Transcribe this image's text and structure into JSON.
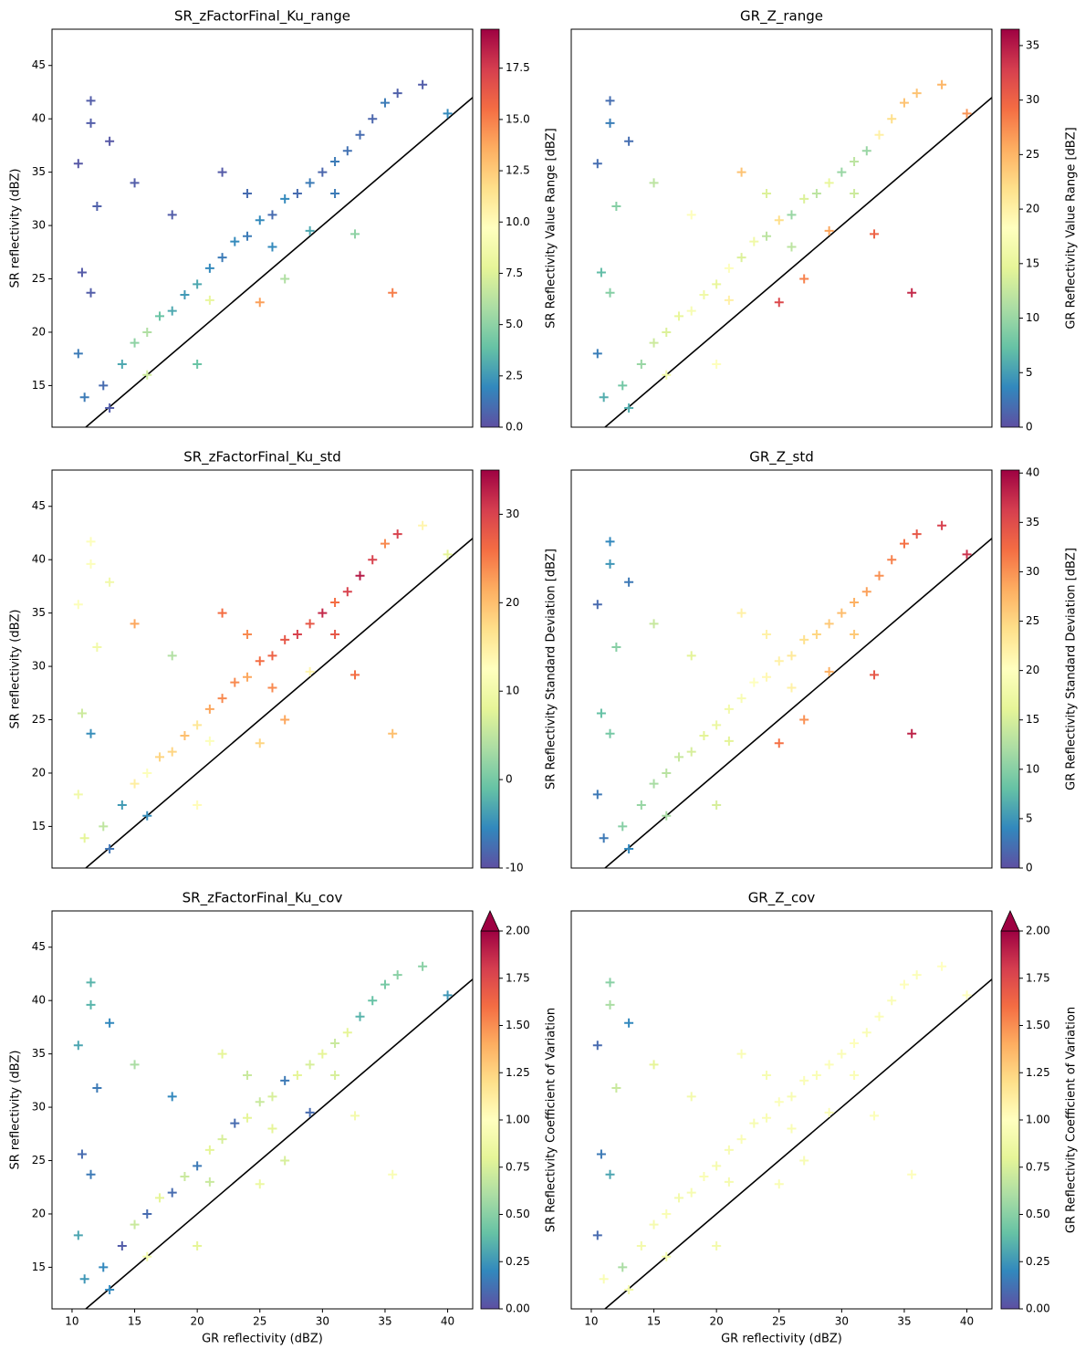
{
  "chart_data": [
    {
      "type": "scatter",
      "title": "SR_zFactorFinal_Ku_range",
      "ylabel": "SR reflectivity (dBZ)",
      "colorbar_label": "SR Reflectivity Value Range [dBZ]",
      "colormap": "Spectral_r",
      "marker": "+",
      "identity_line": true,
      "xlim": [
        8.4,
        42
      ],
      "ylim": [
        11.1,
        48.4
      ],
      "yticks": [
        15,
        20,
        25,
        30,
        35,
        40,
        45
      ],
      "clim": [
        0,
        19.4
      ],
      "cticks": [
        {
          "value": 0,
          "label": "0.0"
        },
        {
          "value": 2.5,
          "label": "2.5"
        },
        {
          "value": 5,
          "label": "5.0"
        },
        {
          "value": 7.5,
          "label": "7.5"
        },
        {
          "value": 10,
          "label": "10.0"
        },
        {
          "value": 12.5,
          "label": "12.5"
        },
        {
          "value": 15,
          "label": "15.0"
        },
        {
          "value": 17.5,
          "label": "17.5"
        }
      ],
      "x": [
        10.5,
        11.5,
        11.5,
        13,
        10.8,
        11.5,
        12,
        10.5,
        11,
        13,
        12.5,
        14,
        15,
        16,
        17,
        18,
        19,
        20,
        21,
        22,
        23,
        24,
        25,
        26,
        27,
        28,
        29,
        30,
        31,
        32,
        33,
        34,
        35,
        36,
        38,
        40,
        35.6,
        32.6,
        20,
        25,
        15,
        18,
        22,
        27,
        24,
        29,
        16,
        21,
        26,
        31
      ],
      "values": [
        35.8,
        41.7,
        39.6,
        37.9,
        25.6,
        23.7,
        31.8,
        18,
        13.9,
        12.9,
        15,
        17,
        19,
        20,
        21.5,
        22,
        23.5,
        24.5,
        26,
        27,
        28.5,
        29,
        30.5,
        31,
        32.5,
        33,
        34,
        35,
        36,
        37,
        38.5,
        40,
        41.5,
        42.4,
        43.2,
        40.5,
        23.7,
        29.2,
        17,
        22.8,
        34,
        31,
        35,
        25,
        33,
        29.5,
        16,
        23,
        28,
        33
      ],
      "color_values": [
        0.3,
        0.5,
        0.5,
        0.3,
        0.4,
        0.5,
        0.6,
        1.5,
        1.5,
        0.5,
        1,
        3,
        5,
        6,
        4,
        3,
        2.5,
        3,
        2,
        1.5,
        2,
        1.5,
        2,
        1,
        2,
        1,
        1.5,
        0.8,
        1.5,
        1.2,
        1,
        0.8,
        1.5,
        0.6,
        0.5,
        2,
        15,
        5,
        4,
        14,
        0.5,
        0.5,
        0.4,
        6,
        1,
        3,
        7,
        8,
        2,
        1.5
      ]
    },
    {
      "type": "scatter",
      "title": "GR_Z_range",
      "colorbar_label": "GR Reflectivity Value Range [dBZ]",
      "colormap": "Spectral_r",
      "marker": "+",
      "identity_line": true,
      "xlim": [
        8.4,
        42
      ],
      "ylim": [
        11.1,
        48.4
      ],
      "clim": [
        0,
        36.5
      ],
      "cticks": [
        0,
        5,
        10,
        15,
        20,
        25,
        30,
        35
      ],
      "x": [
        10.5,
        11.5,
        11.5,
        13,
        10.8,
        11.5,
        12,
        10.5,
        11,
        13,
        12.5,
        14,
        15,
        16,
        17,
        18,
        19,
        20,
        21,
        22,
        23,
        24,
        25,
        26,
        27,
        28,
        29,
        30,
        31,
        32,
        33,
        34,
        35,
        36,
        38,
        40,
        35.6,
        32.6,
        20,
        25,
        15,
        18,
        22,
        27,
        24,
        29,
        16,
        21,
        26,
        31
      ],
      "values": [
        35.8,
        41.7,
        39.6,
        37.9,
        25.6,
        23.7,
        31.8,
        18,
        13.9,
        12.9,
        15,
        17,
        19,
        20,
        21.5,
        22,
        23.5,
        24.5,
        26,
        27,
        28.5,
        29,
        30.5,
        31,
        32.5,
        33,
        34,
        35,
        36,
        37,
        38.5,
        40,
        41.5,
        42.4,
        43.2,
        40.5,
        23.7,
        29.2,
        17,
        22.8,
        34,
        31,
        35,
        25,
        33,
        29.5,
        16,
        23,
        28,
        33
      ],
      "color_values": [
        2,
        2,
        3,
        2,
        7,
        9,
        9,
        3,
        6,
        6,
        8,
        10,
        13,
        14,
        15,
        17,
        16,
        15,
        18,
        14,
        16,
        12,
        22,
        10,
        14,
        12,
        15,
        10,
        12,
        10,
        20,
        22,
        24,
        24,
        25,
        27,
        34,
        30,
        18,
        32,
        12,
        18,
        24,
        28,
        14,
        26,
        16,
        20,
        12,
        13
      ]
    },
    {
      "type": "scatter",
      "title": "SR_zFactorFinal_Ku_std",
      "ylabel": "SR reflectivity (dBZ)",
      "colorbar_label": "SR Reflectivity Standard Deviation [dBZ]",
      "colormap": "Spectral_r",
      "marker": "+",
      "identity_line": true,
      "xlim": [
        8.4,
        42
      ],
      "ylim": [
        11.1,
        48.4
      ],
      "yticks": [
        15,
        20,
        25,
        30,
        35,
        40,
        45
      ],
      "clim": [
        -10,
        35
      ],
      "cticks": [
        -10,
        0,
        10,
        20,
        30
      ],
      "x": [
        10.5,
        11.5,
        11.5,
        13,
        10.8,
        11.5,
        12,
        10.5,
        11,
        13,
        12.5,
        14,
        15,
        16,
        17,
        18,
        19,
        20,
        21,
        22,
        23,
        24,
        25,
        26,
        27,
        28,
        29,
        30,
        31,
        32,
        33,
        34,
        35,
        36,
        38,
        40,
        35.6,
        32.6,
        20,
        25,
        15,
        18,
        22,
        27,
        24,
        29,
        16,
        21,
        26,
        31
      ],
      "values": [
        35.8,
        41.7,
        39.6,
        37.9,
        25.6,
        23.7,
        31.8,
        18,
        13.9,
        12.9,
        15,
        17,
        19,
        20,
        21.5,
        22,
        23.5,
        24.5,
        26,
        27,
        28.5,
        29,
        30.5,
        31,
        32.5,
        33,
        34,
        35,
        36,
        37,
        38.5,
        40,
        41.5,
        42.4,
        43.2,
        40.5,
        23.7,
        29.2,
        17,
        22.8,
        34,
        31,
        35,
        25,
        33,
        29.5,
        16,
        23,
        28,
        33
      ],
      "color_values": [
        12,
        12,
        12,
        10,
        6,
        -5,
        10,
        10,
        8,
        -7,
        5,
        -4,
        15,
        12,
        18,
        18,
        20,
        16,
        22,
        24,
        24,
        22,
        26,
        27,
        28,
        30,
        28,
        32,
        26,
        30,
        33,
        30,
        24,
        30,
        14,
        8,
        20,
        26,
        13,
        18,
        22,
        4,
        26,
        22,
        24,
        14,
        -5,
        12,
        24,
        28
      ]
    },
    {
      "type": "scatter",
      "title": "GR_Z_std",
      "colorbar_label": "GR Reflectivity Standard Deviation [dBZ]",
      "colormap": "Spectral_r",
      "marker": "+",
      "identity_line": true,
      "xlim": [
        8.4,
        42
      ],
      "ylim": [
        11.1,
        48.4
      ],
      "clim": [
        0,
        40.3
      ],
      "cticks": [
        0,
        5,
        10,
        15,
        20,
        25,
        30,
        35,
        40
      ],
      "x": [
        10.5,
        11.5,
        11.5,
        13,
        10.8,
        11.5,
        12,
        10.5,
        11,
        13,
        12.5,
        14,
        15,
        16,
        17,
        18,
        19,
        20,
        21,
        22,
        23,
        24,
        25,
        26,
        27,
        28,
        29,
        30,
        31,
        32,
        33,
        34,
        35,
        36,
        38,
        40,
        35.6,
        32.6,
        20,
        25,
        15,
        18,
        22,
        27,
        24,
        29,
        16,
        21,
        26,
        31
      ],
      "values": [
        35.8,
        41.7,
        39.6,
        37.9,
        25.6,
        23.7,
        31.8,
        18,
        13.9,
        12.9,
        15,
        17,
        19,
        20,
        21.5,
        22,
        23.5,
        24.5,
        26,
        27,
        28.5,
        29,
        30.5,
        31,
        32.5,
        33,
        34,
        35,
        36,
        37,
        38.5,
        40,
        41.5,
        42.4,
        43.2,
        40.5,
        23.7,
        29.2,
        17,
        22.8,
        34,
        31,
        35,
        25,
        33,
        29.5,
        16,
        23,
        28,
        33
      ],
      "color_values": [
        2,
        4,
        5,
        3,
        8,
        9,
        10,
        3,
        3,
        4,
        10,
        11,
        12,
        13,
        14,
        15,
        16,
        17,
        18,
        19,
        20,
        21,
        22,
        23,
        24,
        25,
        26,
        27,
        28,
        29,
        30,
        31,
        32,
        34,
        36,
        37,
        38,
        34,
        15,
        32,
        14,
        16,
        22,
        30,
        22,
        28,
        12,
        16,
        22,
        26
      ]
    },
    {
      "type": "scatter",
      "title": "SR_zFactorFinal_Ku_cov",
      "xlabel": "GR reflectivity (dBZ)",
      "ylabel": "SR reflectivity (dBZ)",
      "colorbar_label": "SR Reflectivity Coefficient of Variation",
      "colormap": "Spectral_r",
      "colorbar_extend": "max",
      "marker": "+",
      "identity_line": true,
      "xlim": [
        8.4,
        42
      ],
      "ylim": [
        11.1,
        48.4
      ],
      "xticks": [
        10,
        15,
        20,
        25,
        30,
        35,
        40
      ],
      "yticks": [
        15,
        20,
        25,
        30,
        35,
        40,
        45
      ],
      "clim": [
        0,
        2
      ],
      "cticks": [
        {
          "value": 0,
          "label": "0.00"
        },
        {
          "value": 0.25,
          "label": "0.25"
        },
        {
          "value": 0.5,
          "label": "0.50"
        },
        {
          "value": 0.75,
          "label": "0.75"
        },
        {
          "value": 1,
          "label": "1.00"
        },
        {
          "value": 1.25,
          "label": "1.25"
        },
        {
          "value": 1.5,
          "label": "1.50"
        },
        {
          "value": 1.75,
          "label": "1.75"
        },
        {
          "value": 2,
          "label": "2.00"
        }
      ],
      "x": [
        10.5,
        11.5,
        11.5,
        13,
        10.8,
        11.5,
        12,
        10.5,
        11,
        13,
        12.5,
        14,
        15,
        16,
        17,
        18,
        19,
        20,
        21,
        22,
        23,
        24,
        25,
        26,
        27,
        28,
        29,
        30,
        31,
        32,
        33,
        34,
        35,
        36,
        38,
        40,
        35.6,
        32.6,
        20,
        25,
        15,
        18,
        22,
        27,
        24,
        29,
        16,
        21,
        26,
        31
      ],
      "values": [
        35.8,
        41.7,
        39.6,
        37.9,
        25.6,
        23.7,
        31.8,
        18,
        13.9,
        12.9,
        15,
        17,
        19,
        20,
        21.5,
        22,
        23.5,
        24.5,
        26,
        27,
        28.5,
        29,
        30.5,
        31,
        32.5,
        33,
        34,
        35,
        36,
        37,
        38.5,
        40,
        41.5,
        42.4,
        43.2,
        40.5,
        23.7,
        29.2,
        17,
        22.8,
        34,
        31,
        35,
        25,
        33,
        29.5,
        16,
        23,
        28,
        33
      ],
      "color_values": [
        0.3,
        0.35,
        0.35,
        0.2,
        0.1,
        0.15,
        0.15,
        0.3,
        0.25,
        0.2,
        0.2,
        0.05,
        0.7,
        0.1,
        0.8,
        0.1,
        0.7,
        0.15,
        0.8,
        0.75,
        0.1,
        0.8,
        0.7,
        0.75,
        0.15,
        0.8,
        0.75,
        0.8,
        0.7,
        0.8,
        0.35,
        0.4,
        0.45,
        0.5,
        0.5,
        0.25,
        0.95,
        0.9,
        0.8,
        0.85,
        0.6,
        0.2,
        0.8,
        0.75,
        0.7,
        0.1,
        0.9,
        0.7,
        0.8,
        0.75
      ]
    },
    {
      "type": "scatter",
      "title": "GR_Z_cov",
      "xlabel": "GR reflectivity (dBZ)",
      "colorbar_label": "GR Reflectivity Coefficient of Variation",
      "colormap": "Spectral_r",
      "colorbar_extend": "max",
      "marker": "+",
      "identity_line": true,
      "xlim": [
        8.4,
        42
      ],
      "ylim": [
        11.1,
        48.4
      ],
      "xticks": [
        10,
        15,
        20,
        25,
        30,
        35,
        40
      ],
      "clim": [
        0,
        2
      ],
      "cticks": [
        {
          "value": 0,
          "label": "0.00"
        },
        {
          "value": 0.25,
          "label": "0.25"
        },
        {
          "value": 0.5,
          "label": "0.50"
        },
        {
          "value": 0.75,
          "label": "0.75"
        },
        {
          "value": 1,
          "label": "1.00"
        },
        {
          "value": 1.25,
          "label": "1.25"
        },
        {
          "value": 1.5,
          "label": "1.50"
        },
        {
          "value": 1.75,
          "label": "1.75"
        },
        {
          "value": 2,
          "label": "2.00"
        }
      ],
      "x": [
        10.5,
        11.5,
        11.5,
        13,
        10.8,
        11.5,
        12,
        10.5,
        11,
        13,
        12.5,
        14,
        15,
        16,
        17,
        18,
        19,
        20,
        21,
        22,
        23,
        24,
        25,
        26,
        27,
        28,
        29,
        30,
        31,
        32,
        33,
        34,
        35,
        36,
        38,
        40,
        35.6,
        32.6,
        20,
        25,
        15,
        18,
        22,
        27,
        24,
        29,
        16,
        21,
        26,
        31
      ],
      "values": [
        35.8,
        41.7,
        39.6,
        37.9,
        25.6,
        23.7,
        31.8,
        18,
        13.9,
        12.9,
        15,
        17,
        19,
        20,
        21.5,
        22,
        23.5,
        24.5,
        26,
        27,
        28.5,
        29,
        30.5,
        31,
        32.5,
        33,
        34,
        35,
        36,
        37,
        38.5,
        40,
        41.5,
        42.4,
        43.2,
        40.5,
        23.7,
        29.2,
        17,
        22.8,
        34,
        31,
        35,
        25,
        33,
        29.5,
        16,
        23,
        28,
        33
      ],
      "color_values": [
        0.1,
        0.5,
        0.6,
        0.2,
        0.15,
        0.3,
        0.7,
        0.1,
        0.95,
        0.9,
        0.6,
        0.9,
        0.92,
        0.95,
        0.9,
        0.93,
        0.95,
        0.92,
        0.94,
        0.96,
        0.93,
        0.95,
        0.97,
        0.94,
        0.96,
        0.95,
        0.97,
        0.96,
        0.98,
        0.95,
        0.97,
        0.96,
        0.98,
        0.97,
        1.0,
        0.99,
        0.98,
        0.97,
        0.9,
        0.95,
        0.8,
        0.9,
        0.95,
        0.94,
        0.93,
        0.96,
        0.9,
        0.92,
        0.95,
        0.96
      ]
    }
  ]
}
